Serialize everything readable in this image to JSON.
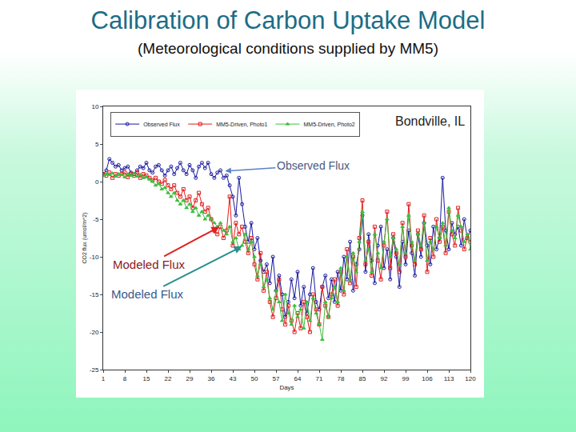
{
  "chart_data": {
    "type": "line",
    "title": "Calibration of Carbon Uptake Model",
    "subtitle": "(Meteorological conditions supplied by MM5)",
    "x_label": "Days",
    "y_label": "CO2 flux (umol/m^2)",
    "annotations": [
      "Bondville, IL",
      "Observed Flux",
      "Modeled Flux",
      "Modeled Flux"
    ],
    "x": [
      1,
      2,
      3,
      4,
      5,
      6,
      7,
      8,
      9,
      10,
      11,
      12,
      13,
      14,
      15,
      16,
      17,
      18,
      19,
      20,
      21,
      22,
      23,
      24,
      25,
      26,
      27,
      28,
      29,
      30,
      31,
      32,
      33,
      34,
      35,
      36,
      37,
      38,
      39,
      40,
      41,
      42,
      43,
      44,
      45,
      46,
      47,
      48,
      49,
      50,
      51,
      52,
      53,
      54,
      55,
      56,
      57,
      58,
      59,
      60,
      61,
      62,
      63,
      64,
      65,
      66,
      67,
      68,
      69,
      70,
      71,
      72,
      73,
      74,
      75,
      76,
      77,
      78,
      79,
      80,
      81,
      82,
      83,
      84,
      85,
      86,
      87,
      88,
      89,
      90,
      91,
      92,
      93,
      94,
      95,
      96,
      97,
      98,
      99,
      100,
      101,
      102,
      103,
      104,
      105,
      106,
      107,
      108,
      109,
      110,
      111,
      112,
      113,
      114,
      115,
      116,
      117,
      118,
      119,
      120
    ],
    "series": [
      {
        "name": "Observed Flux",
        "color": "#1a1aa0",
        "marker": "circle-open",
        "line_style": "solid",
        "values": [
          1.0,
          1.5,
          3.0,
          2.5,
          2.0,
          2.2,
          1.5,
          1.8,
          2.0,
          1.2,
          1.0,
          1.5,
          2.0,
          1.8,
          2.5,
          1.5,
          1.2,
          2.0,
          2.2,
          1.5,
          0.8,
          1.5,
          2.0,
          1.0,
          1.8,
          2.5,
          1.5,
          1.0,
          2.2,
          1.5,
          0.5,
          2.0,
          2.5,
          1.8,
          2.5,
          1.0,
          0.5,
          1.2,
          1.5,
          0.5,
          0.8,
          -0.5,
          -2.0,
          -4.5,
          0.5,
          -3.0,
          -6.0,
          -8.0,
          -5.5,
          -9.0,
          -7.5,
          -10.5,
          -12.0,
          -11.0,
          -13.5,
          -10.0,
          -14.5,
          -12.5,
          -15.0,
          -18.0,
          -16.0,
          -13.0,
          -15.5,
          -12.0,
          -16.5,
          -14.0,
          -17.5,
          -15.0,
          -11.5,
          -16.0,
          -17.0,
          -14.0,
          -12.5,
          -15.5,
          -13.0,
          -16.0,
          -12.0,
          -14.5,
          -10.0,
          -13.0,
          -8.0,
          -14.5,
          -11.0,
          -9.0,
          -4.5,
          -12.0,
          -7.0,
          -10.5,
          -13.5,
          -8.5,
          -6.0,
          -11.5,
          -9.0,
          -13.0,
          -7.5,
          -10.0,
          -14.0,
          -8.0,
          -11.0,
          -6.5,
          -9.5,
          -12.5,
          -7.0,
          -10.0,
          -5.5,
          -8.5,
          -11.0,
          -6.0,
          -9.0,
          -7.5,
          0.5,
          -6.5,
          -9.0,
          -5.5,
          -7.0,
          -6.0,
          -8.5,
          -5.0,
          -7.5,
          -6.5
        ]
      },
      {
        "name": "MM5-Driven, Photo1",
        "color": "#e01e1e",
        "marker": "square-open",
        "line_style": "solid",
        "values": [
          1.0,
          0.8,
          1.2,
          0.5,
          1.0,
          0.8,
          1.0,
          1.2,
          0.6,
          1.0,
          0.8,
          1.2,
          0.5,
          1.0,
          0.8,
          0.5,
          0.2,
          0.5,
          0.0,
          -0.3,
          0.2,
          -0.5,
          -1.0,
          -0.5,
          -1.5,
          -2.0,
          -1.0,
          -2.5,
          -2.0,
          -3.5,
          -2.5,
          -1.5,
          -3.0,
          -4.0,
          -3.5,
          -5.0,
          -6.5,
          -7.0,
          -6.0,
          -7.5,
          -6.5,
          -2.0,
          -8.5,
          -5.5,
          -7.0,
          -6.0,
          -8.0,
          -9.5,
          -7.5,
          -11.0,
          -13.0,
          -9.5,
          -14.5,
          -12.0,
          -16.0,
          -18.0,
          -15.5,
          -13.0,
          -17.0,
          -19.0,
          -16.5,
          -18.5,
          -20.0,
          -17.5,
          -19.5,
          -16.0,
          -18.0,
          -20.0,
          -15.0,
          -17.0,
          -19.0,
          -14.0,
          -16.5,
          -18.0,
          -15.0,
          -13.0,
          -16.5,
          -12.0,
          -15.0,
          -9.0,
          -13.5,
          -10.0,
          -14.0,
          -7.5,
          -2.5,
          -11.0,
          -8.0,
          -12.5,
          -6.0,
          -10.5,
          -13.0,
          -8.5,
          -4.0,
          -11.5,
          -7.0,
          -9.5,
          -12.0,
          -5.5,
          -10.0,
          -3.0,
          -8.5,
          -11.0,
          -6.5,
          -9.0,
          -4.5,
          -12.0,
          -7.5,
          -10.0,
          -5.0,
          -8.0,
          -6.0,
          -9.5,
          -4.0,
          -7.0,
          -8.5,
          -3.5,
          -6.5,
          -9.0,
          -7.5,
          -8.0
        ]
      },
      {
        "name": "MM5-Driven, Photo2",
        "color": "#3cbf3c",
        "marker": "triangle-up",
        "line_style": "solid",
        "values": [
          0.8,
          1.0,
          0.9,
          1.1,
          0.7,
          1.0,
          0.9,
          0.6,
          1.0,
          0.8,
          1.1,
          0.7,
          0.9,
          0.5,
          0.6,
          0.3,
          0.0,
          -0.5,
          -0.3,
          -1.0,
          -0.8,
          -1.5,
          -2.0,
          -1.5,
          -2.5,
          -3.0,
          -2.5,
          -3.5,
          -3.0,
          -4.0,
          -3.5,
          -4.5,
          -4.0,
          -5.0,
          -4.5,
          -5.0,
          -5.5,
          -6.0,
          -5.5,
          -6.5,
          -7.0,
          -6.0,
          -8.0,
          -7.5,
          -9.0,
          -8.5,
          -7.0,
          -9.0,
          -8.0,
          -10.0,
          -12.5,
          -11.0,
          -14.0,
          -13.0,
          -15.5,
          -17.0,
          -14.5,
          -16.0,
          -18.5,
          -15.0,
          -17.5,
          -19.0,
          -16.5,
          -18.0,
          -17.0,
          -19.5,
          -16.0,
          -18.5,
          -15.5,
          -17.5,
          -19.0,
          -21.0,
          -16.0,
          -18.0,
          -15.5,
          -14.0,
          -16.0,
          -11.5,
          -14.5,
          -10.0,
          -13.0,
          -9.5,
          -12.0,
          -8.0,
          -4.0,
          -10.5,
          -9.0,
          -12.0,
          -7.0,
          -9.5,
          -11.5,
          -8.0,
          -5.0,
          -10.0,
          -7.5,
          -9.0,
          -11.0,
          -6.0,
          -9.5,
          -4.5,
          -8.0,
          -10.5,
          -7.0,
          -8.5,
          -5.5,
          -10.5,
          -8.0,
          -9.0,
          -6.0,
          -7.5,
          -5.5,
          -8.5,
          -3.5,
          -6.5,
          -7.5,
          -4.5,
          -6.0,
          -8.0,
          -7.0,
          -9.0
        ]
      }
    ],
    "xlim": [
      1,
      120
    ],
    "xticks": [
      1,
      8,
      15,
      22,
      29,
      36,
      43,
      50,
      57,
      64,
      71,
      78,
      85,
      92,
      99,
      106,
      113,
      120
    ],
    "ylim": [
      -25,
      10
    ],
    "yticks": [
      -25,
      -20,
      -15,
      -10,
      -5,
      0,
      5,
      10
    ],
    "grid": false,
    "legend": "top left"
  }
}
